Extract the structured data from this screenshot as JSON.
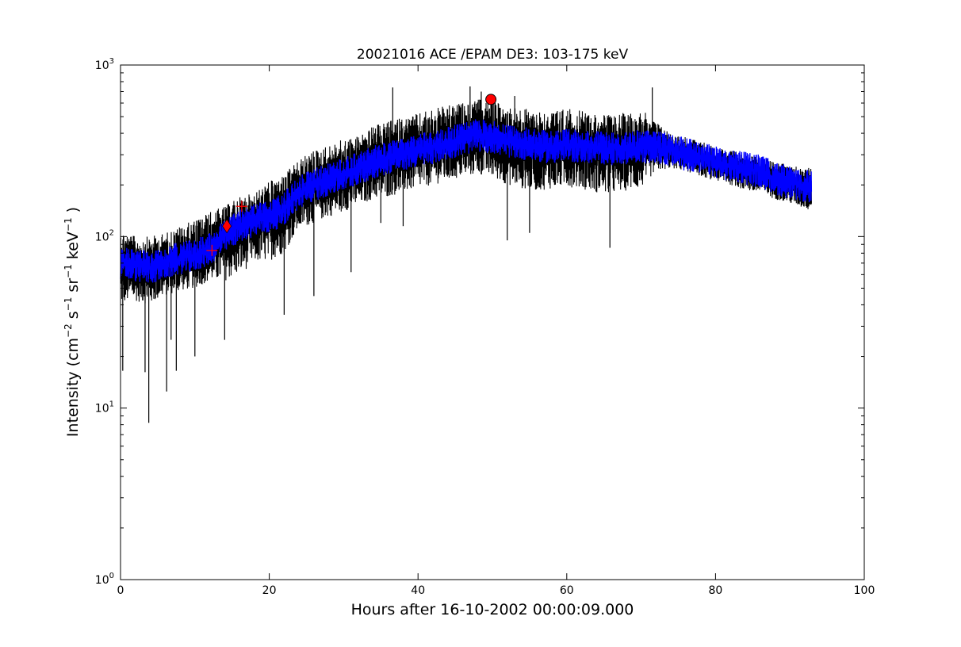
{
  "chart_data": {
    "type": "line",
    "title": "20021016 ACE /EPAM DE3: 103-175 keV",
    "xlabel": "Hours after 16-10-2002 00:00:09.000",
    "ylabel": {
      "prefix": "Intensity (cm",
      "exp1": "−2",
      "s": " s",
      "exp2": "−1",
      "sr": " sr",
      "exp3": "−1",
      "kev": " keV",
      "exp4": "−1",
      "suffix": " )"
    },
    "xlim": [
      0,
      100
    ],
    "ylim": [
      1,
      1000
    ],
    "yscale": "log",
    "x_ticks": [
      0,
      20,
      40,
      60,
      80,
      100
    ],
    "x_tick_labels": [
      "0",
      "20",
      "40",
      "60",
      "80",
      "100"
    ],
    "y_ticks": [
      {
        "value": 1,
        "base": "10",
        "exp": "0"
      },
      {
        "value": 10,
        "base": "10",
        "exp": "1"
      },
      {
        "value": 100,
        "base": "10",
        "exp": "2"
      },
      {
        "value": 1000,
        "base": "10",
        "exp": "3"
      }
    ],
    "grid": false,
    "series": [
      {
        "kind": "raw",
        "color": "#000000",
        "x": [
          0,
          2,
          4,
          6,
          8,
          10,
          12,
          14,
          16,
          18,
          20,
          22,
          24,
          26,
          28,
          30,
          32,
          34,
          36,
          38,
          40,
          42,
          44,
          46,
          48,
          50,
          52,
          54,
          56,
          58,
          60,
          62,
          64,
          66,
          68,
          70,
          72,
          74,
          76,
          78,
          80,
          82,
          84,
          86,
          88,
          90,
          92.9
        ],
        "center": [
          70,
          68,
          66,
          70,
          75,
          78,
          85,
          100,
          115,
          125,
          130,
          145,
          180,
          200,
          215,
          230,
          250,
          270,
          290,
          300,
          320,
          330,
          350,
          370,
          390,
          380,
          360,
          350,
          340,
          330,
          340,
          335,
          330,
          325,
          330,
          335,
          330,
          320,
          300,
          290,
          275,
          260,
          250,
          240,
          220,
          205,
          195
        ],
        "low": [
          40,
          42,
          40,
          45,
          48,
          50,
          55,
          55,
          60,
          70,
          72,
          80,
          110,
          120,
          130,
          140,
          150,
          165,
          170,
          180,
          190,
          200,
          210,
          220,
          230,
          220,
          200,
          190,
          185,
          190,
          195,
          190,
          180,
          175,
          185,
          190,
          240,
          250,
          240,
          225,
          210,
          200,
          185,
          175,
          165,
          155,
          140
        ],
        "high": [
          110,
          100,
          100,
          105,
          115,
          125,
          140,
          150,
          170,
          180,
          210,
          230,
          280,
          320,
          340,
          370,
          390,
          440,
          470,
          500,
          520,
          560,
          580,
          600,
          630,
          620,
          580,
          560,
          550,
          540,
          560,
          540,
          520,
          510,
          530,
          550,
          470,
          400,
          380,
          360,
          330,
          320,
          300,
          290,
          275,
          260,
          250
        ],
        "spikes": [
          [
            3.8,
            8.2
          ],
          [
            0.3,
            16.5
          ],
          [
            6.2,
            12.5
          ],
          [
            7.5,
            16.5
          ],
          [
            3.3,
            16.2
          ],
          [
            10,
            20
          ],
          [
            6.8,
            25
          ],
          [
            14,
            25
          ],
          [
            22,
            35
          ],
          [
            26,
            45
          ],
          [
            31,
            62
          ],
          [
            35,
            120
          ],
          [
            38,
            115
          ],
          [
            52,
            95
          ],
          [
            55,
            105
          ],
          [
            65.8,
            86
          ],
          [
            47,
            750
          ],
          [
            48.5,
            700
          ],
          [
            36.6,
            740
          ],
          [
            71.5,
            740
          ],
          [
            53,
            660
          ]
        ]
      },
      {
        "kind": "smoothed",
        "color": "#0000ff",
        "x": [
          0,
          2,
          4,
          6,
          8,
          10,
          12,
          14,
          16,
          18,
          20,
          22,
          24,
          26,
          28,
          30,
          32,
          34,
          36,
          38,
          40,
          42,
          44,
          46,
          48,
          50,
          52,
          54,
          56,
          58,
          60,
          62,
          64,
          66,
          68,
          70,
          72,
          74,
          76,
          78,
          80,
          82,
          84,
          86,
          88,
          90,
          92.9
        ],
        "center": [
          70,
          68,
          66,
          70,
          75,
          78,
          85,
          100,
          115,
          125,
          130,
          145,
          180,
          200,
          215,
          230,
          250,
          270,
          290,
          300,
          320,
          330,
          350,
          370,
          390,
          380,
          360,
          350,
          340,
          330,
          340,
          335,
          330,
          325,
          330,
          335,
          330,
          320,
          300,
          290,
          275,
          260,
          250,
          240,
          220,
          205,
          195
        ],
        "low_factor": 0.8,
        "high_factor": 1.25
      }
    ],
    "markers": [
      {
        "shape": "circle",
        "x": 49.8,
        "y": 630,
        "color": "#ff0000"
      },
      {
        "shape": "diamond",
        "x": 14.3,
        "y": 115,
        "color": "#ff0000"
      },
      {
        "shape": "plus",
        "x": 12.3,
        "y": 83,
        "color": "#ff0000"
      },
      {
        "shape": "plus",
        "x": 16.3,
        "y": 150,
        "color": "#ff0000"
      }
    ]
  }
}
